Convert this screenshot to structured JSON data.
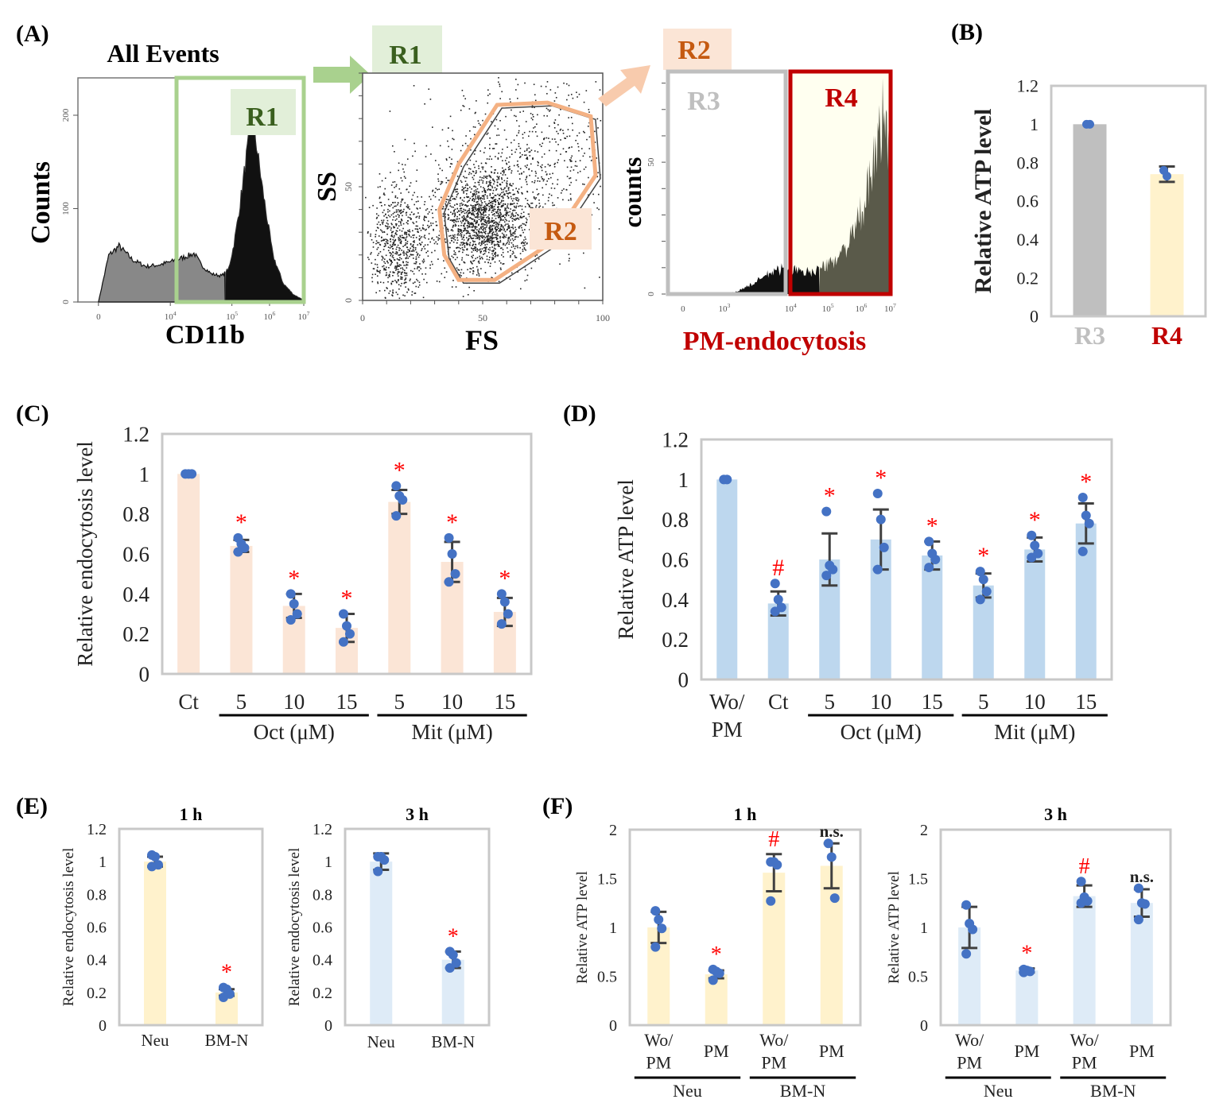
{
  "panels": {
    "A": "(A)",
    "B": "(B)",
    "C": "(C)",
    "D": "(D)",
    "E": "(E)",
    "F": "(F)"
  },
  "colors": {
    "gate_green": "#a9d18e",
    "gate_green_text": "#3a5f1e",
    "gate_green_bg": "#e2efd9",
    "gate_orange": "#f4b183",
    "gate_orange_text": "#c55a11",
    "gate_orange_bg": "#fbe5d6",
    "r3_gray": "#bfbfbf",
    "r4_red": "#c00000",
    "r4_bg": "#fffff0",
    "bar_peach": "#fbe5d6",
    "bar_blue": "#bdd7ee",
    "bar_yellow": "#fff2cc",
    "bar_lightblue": "#deebf7",
    "bar_gray": "#bfbfbf",
    "dot_blue": "#4472c4",
    "sig_red": "#ff0000",
    "err_dark": "#404040"
  },
  "chart_data": [
    {
      "id": "A1",
      "type": "histogram",
      "title": "All Events",
      "xlabel": "CD11b",
      "ylabel": "Counts",
      "xticks": [
        "0",
        "10^4",
        "10^5",
        "10^6",
        "10^7"
      ],
      "yticks": [
        "0",
        "100",
        "200"
      ],
      "ylim": [
        0,
        240
      ],
      "gate": {
        "name": "R1",
        "range": [
          "~4x10^4",
          "10^7"
        ]
      },
      "profile": {
        "x": [
          0,
          0.3,
          0.6,
          1.0,
          1.4,
          1.8,
          2.2,
          2.5,
          2.8,
          3.0,
          3.3,
          3.6,
          3.8,
          3.95,
          4.1,
          4.3,
          4.5,
          4.8,
          5.1,
          5.4,
          5.7,
          6.0
        ],
        "y": [
          0,
          50,
          60,
          45,
          38,
          40,
          44,
          48,
          52,
          40,
          30,
          28,
          35,
          60,
          95,
          150,
          200,
          120,
          50,
          20,
          8,
          2
        ]
      }
    },
    {
      "id": "A2",
      "type": "scatter",
      "title": "R1",
      "xlabel": "FS",
      "ylabel": "SS",
      "xticks": [
        "0",
        "50",
        "100"
      ],
      "yticks": [
        "0",
        "50"
      ],
      "xlim": [
        0,
        100
      ],
      "ylim": [
        0,
        100
      ],
      "gate": {
        "name": "R2",
        "polygon": [
          [
            56,
            86
          ],
          [
            77,
            87
          ],
          [
            95,
            81
          ],
          [
            97,
            55
          ],
          [
            78,
            25
          ],
          [
            55,
            9
          ],
          [
            40,
            9
          ],
          [
            34,
            20
          ],
          [
            32,
            40
          ],
          [
            40,
            60
          ]
        ]
      },
      "clusters": [
        {
          "cx": 50,
          "cy": 35,
          "sx": 10,
          "sy": 11,
          "n": 1500
        },
        {
          "cx": 15,
          "cy": 25,
          "sx": 6,
          "sy": 13,
          "n": 700
        },
        {
          "cx": 70,
          "cy": 60,
          "sx": 20,
          "sy": 20,
          "n": 700
        }
      ]
    },
    {
      "id": "A3",
      "type": "histogram",
      "title": "R2",
      "xlabel": "PM-endocytosis",
      "ylabel": "counts",
      "xticks": [
        "0",
        "10^3",
        "10^4",
        "10^5",
        "10^6",
        "10^7"
      ],
      "yticks": [
        "0",
        "50"
      ],
      "ylim": [
        0,
        85
      ],
      "gates": [
        {
          "name": "R3",
          "range": [
            "0",
            "~5x10^4"
          ]
        },
        {
          "name": "R4",
          "range": [
            "~5x10^4",
            "10^7"
          ]
        }
      ],
      "profile": {
        "x": [
          0,
          1.0,
          1.3,
          1.7,
          2.1,
          2.5,
          2.9,
          3.2,
          3.5,
          3.8,
          4.1,
          4.4,
          4.7,
          4.85,
          5.0
        ],
        "y": [
          0,
          0,
          1,
          4,
          8,
          10,
          8,
          9,
          11,
          15,
          22,
          35,
          55,
          72,
          45
        ]
      }
    },
    {
      "id": "B",
      "type": "bar",
      "ylabel": "Relative ATP level",
      "categories": [
        "R3",
        "R4"
      ],
      "values": [
        1.0,
        0.74
      ],
      "errors": [
        0.0,
        0.04
      ],
      "points": [
        [
          1.0,
          1.0
        ],
        [
          0.76,
          0.73
        ]
      ],
      "ylim": [
        0,
        1.2
      ],
      "yticks": [
        "0",
        "0.2",
        "0.4",
        "0.6",
        "0.8",
        "1",
        "1.2"
      ]
    },
    {
      "id": "C",
      "type": "bar",
      "ylabel": "Relative endocytosis level",
      "categories": [
        "Ct",
        "5",
        "10",
        "15",
        "5",
        "10",
        "15"
      ],
      "groups": [
        {
          "label": "Oct (μM)",
          "from": 1,
          "to": 3
        },
        {
          "label": "Mit (μM)",
          "from": 4,
          "to": 6
        }
      ],
      "values": [
        1.0,
        0.64,
        0.34,
        0.23,
        0.86,
        0.56,
        0.31
      ],
      "errors": [
        0.0,
        0.03,
        0.06,
        0.07,
        0.06,
        0.1,
        0.07
      ],
      "points": [
        [
          1.0,
          1.0,
          1.0
        ],
        [
          0.68,
          0.65,
          0.63,
          0.61
        ],
        [
          0.4,
          0.35,
          0.3,
          0.27
        ],
        [
          0.3,
          0.24,
          0.2,
          0.16
        ],
        [
          0.94,
          0.89,
          0.87,
          0.79
        ],
        [
          0.68,
          0.6,
          0.5,
          0.46
        ],
        [
          0.4,
          0.36,
          0.3,
          0.25
        ]
      ],
      "significance": [
        "",
        "*",
        "*",
        "*",
        "*",
        "*",
        "*"
      ],
      "ylim": [
        0,
        1.2
      ],
      "yticks": [
        "0",
        "0.2",
        "0.4",
        "0.6",
        "0.8",
        "1",
        "1.2"
      ]
    },
    {
      "id": "D",
      "type": "bar",
      "ylabel": "Relative ATP  level",
      "categories": [
        "Wo/\nPM",
        "Ct",
        "5",
        "10",
        "15",
        "5",
        "10",
        "15"
      ],
      "groups": [
        {
          "label": "Oct (μM)",
          "from": 2,
          "to": 4
        },
        {
          "label": "Mit (μM)",
          "from": 5,
          "to": 7
        }
      ],
      "values": [
        1.0,
        0.38,
        0.6,
        0.7,
        0.62,
        0.47,
        0.65,
        0.78
      ],
      "errors": [
        0.0,
        0.06,
        0.13,
        0.15,
        0.07,
        0.06,
        0.06,
        0.1
      ],
      "points": [
        [
          1.0,
          1.0
        ],
        [
          0.48,
          0.4,
          0.36,
          0.34
        ],
        [
          0.84,
          0.57,
          0.55,
          0.52
        ],
        [
          0.93,
          0.8,
          0.66,
          0.55
        ],
        [
          0.69,
          0.63,
          0.6,
          0.56
        ],
        [
          0.54,
          0.5,
          0.44,
          0.4
        ],
        [
          0.72,
          0.67,
          0.63,
          0.61
        ],
        [
          0.91,
          0.82,
          0.78,
          0.64
        ]
      ],
      "significance": [
        "",
        "#",
        "*",
        "*",
        "*",
        "*",
        "*",
        "*"
      ],
      "ylim": [
        0,
        1.2
      ],
      "yticks": [
        "0",
        "0.2",
        "0.4",
        "0.6",
        "0.8",
        "1",
        "1.2"
      ]
    },
    {
      "id": "E1",
      "type": "bar",
      "title": "1 h",
      "ylabel": "Relative endocytosis level",
      "categories": [
        "Neu",
        "BM-N"
      ],
      "values": [
        1.0,
        0.2
      ],
      "errors": [
        0.03,
        0.02
      ],
      "points": [
        [
          1.04,
          1.03,
          0.98,
          0.97
        ],
        [
          0.23,
          0.22,
          0.19,
          0.17
        ]
      ],
      "significance": [
        "",
        "*"
      ],
      "ylim": [
        0,
        1.2
      ],
      "yticks": [
        "0",
        "0.2",
        "0.4",
        "0.6",
        "0.8",
        "1",
        "1.2"
      ]
    },
    {
      "id": "E2",
      "type": "bar",
      "title": "3 h",
      "ylabel": "Relative endocytosis level",
      "categories": [
        "Neu",
        "BM-N"
      ],
      "values": [
        1.0,
        0.4
      ],
      "errors": [
        0.05,
        0.05
      ],
      "points": [
        [
          1.03,
          1.03,
          1.01,
          0.94
        ],
        [
          0.45,
          0.43,
          0.38,
          0.35
        ]
      ],
      "significance": [
        "",
        "*"
      ],
      "ylim": [
        0,
        1.2
      ],
      "yticks": [
        "0",
        "0.2",
        "0.4",
        "0.6",
        "0.8",
        "1",
        "1.2"
      ]
    },
    {
      "id": "F1",
      "type": "bar",
      "title": "1 h",
      "ylabel": "Relative ATP level",
      "categories": [
        "Wo/\nPM",
        "PM",
        "Wo/\nPM",
        "PM"
      ],
      "groups": [
        {
          "label": "Neu",
          "from": 0,
          "to": 1
        },
        {
          "label": "BM-N",
          "from": 2,
          "to": 3
        }
      ],
      "values": [
        1.0,
        0.52,
        1.56,
        1.63
      ],
      "errors": [
        0.16,
        0.04,
        0.19,
        0.23
      ],
      "points": [
        [
          1.17,
          1.08,
          0.99,
          0.8
        ],
        [
          0.57,
          0.55,
          0.53,
          0.46
        ],
        [
          1.67,
          1.67,
          1.64,
          1.27
        ],
        [
          1.86,
          1.72,
          1.3
        ]
      ],
      "significance": [
        "",
        "*",
        "#",
        "n.s."
      ],
      "ylim": [
        0,
        2
      ],
      "yticks": [
        "0",
        "0.5",
        "1",
        "1.5",
        "2"
      ]
    },
    {
      "id": "F2",
      "type": "bar",
      "title": "3 h",
      "ylabel": "Relative ATP level",
      "categories": [
        "Wo/\nPM",
        "PM",
        "Wo/\nPM",
        "PM"
      ],
      "groups": [
        {
          "label": "Neu",
          "from": 0,
          "to": 1
        },
        {
          "label": "BM-N",
          "from": 2,
          "to": 3
        }
      ],
      "values": [
        1.0,
        0.56,
        1.32,
        1.25
      ],
      "errors": [
        0.21,
        0.02,
        0.11,
        0.14
      ],
      "points": [
        [
          1.23,
          1.04,
          0.98,
          0.73
        ],
        [
          0.57,
          0.56,
          0.55,
          0.54
        ],
        [
          1.47,
          1.31,
          1.27,
          1.25
        ],
        [
          1.4,
          1.25,
          1.24,
          1.08
        ]
      ],
      "significance": [
        "",
        "*",
        "#",
        "n.s."
      ],
      "ylim": [
        0,
        2
      ],
      "yticks": [
        "0",
        "0.5",
        "1",
        "1.5",
        "2"
      ]
    }
  ]
}
